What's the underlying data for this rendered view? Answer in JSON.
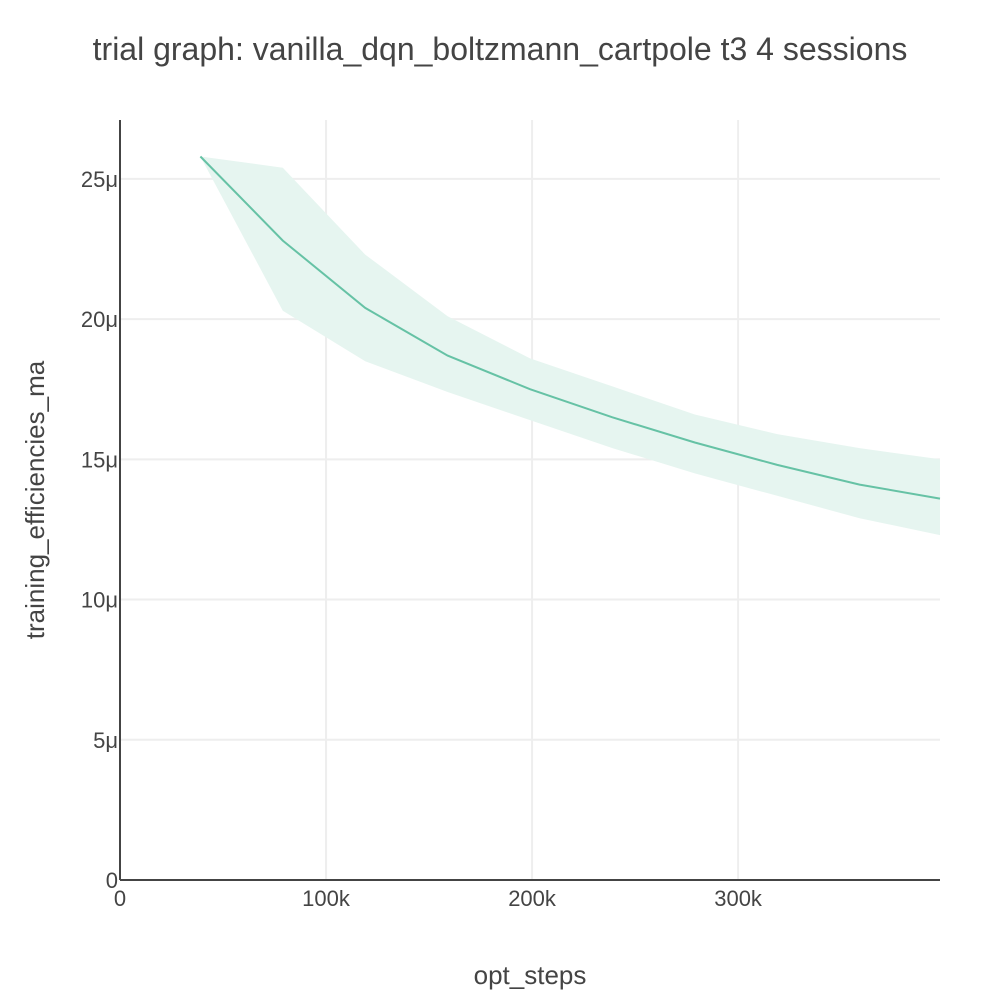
{
  "chart_data": {
    "type": "line",
    "title": "trial graph: vanilla_dqn_boltzmann_cartpole t3 4 sessions",
    "xlabel": "opt_steps",
    "ylabel": "training_efficiencies_ma",
    "xlim": [
      0,
      398000
    ],
    "ylim": [
      0,
      27.1
    ],
    "x_ticks": [
      {
        "value": 0,
        "label": "0"
      },
      {
        "value": 100000,
        "label": "100k"
      },
      {
        "value": 200000,
        "label": "200k"
      },
      {
        "value": 300000,
        "label": "300k"
      }
    ],
    "y_ticks": [
      {
        "value": 0,
        "label": "0"
      },
      {
        "value": 5,
        "label": "5μ"
      },
      {
        "value": 10,
        "label": "10μ"
      },
      {
        "value": 15,
        "label": "15μ"
      },
      {
        "value": 20,
        "label": "20μ"
      },
      {
        "value": 25,
        "label": "25μ"
      }
    ],
    "grid": true,
    "x": [
      39000,
      79000,
      119000,
      159000,
      199000,
      239000,
      279000,
      319000,
      359000,
      398000
    ],
    "series": [
      {
        "values": [
          25.8,
          22.8,
          20.4,
          18.7,
          17.5,
          16.5,
          15.6,
          14.8,
          14.1,
          13.6
        ],
        "upper": [
          25.8,
          25.4,
          22.3,
          20.1,
          18.6,
          17.6,
          16.6,
          15.9,
          15.4,
          15.0
        ],
        "lower": [
          25.8,
          20.3,
          18.5,
          17.4,
          16.4,
          15.4,
          14.5,
          13.7,
          12.9,
          12.3
        ],
        "color": "#66c2a5",
        "band_color": "#e6f5f0"
      }
    ]
  }
}
